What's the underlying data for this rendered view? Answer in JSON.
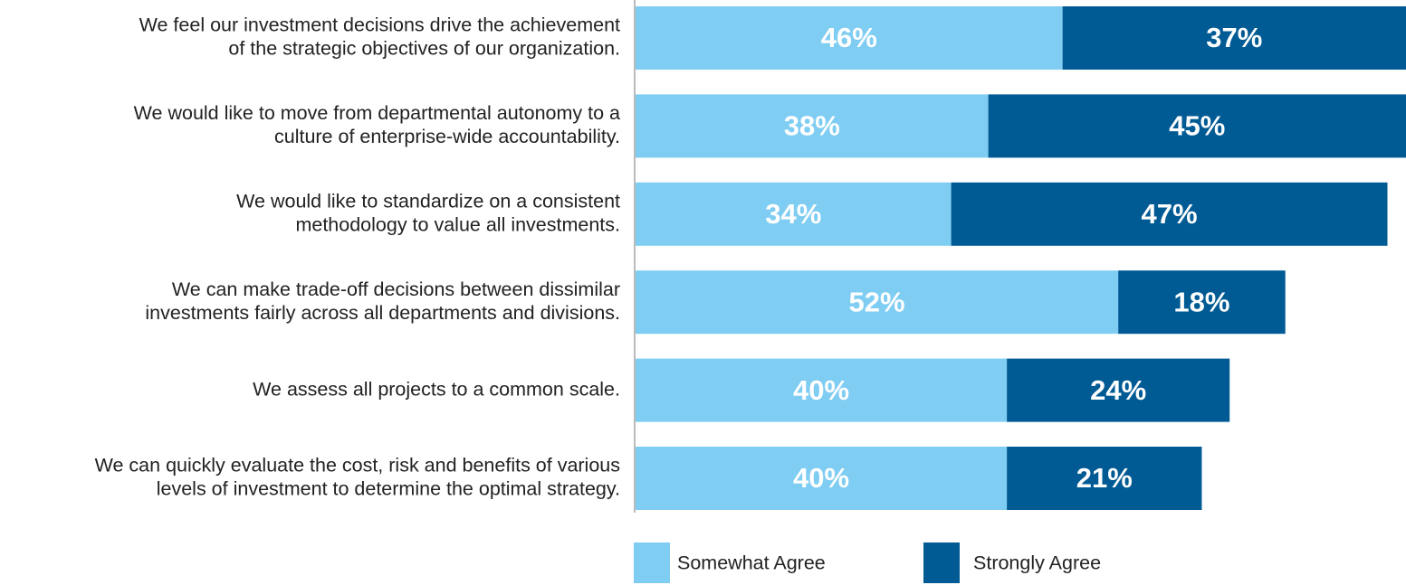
{
  "chart_data": {
    "type": "stacked-bar-horizontal",
    "categories": [
      [
        "We feel our investment decisions drive the achievement",
        "of the strategic objectives of our organization."
      ],
      [
        "We would like to move from departmental autonomy to a",
        "culture of enterprise-wide accountability."
      ],
      [
        "We would like to standardize on a consistent",
        "methodology to value all investments."
      ],
      [
        "We can make trade-off decisions between dissimilar",
        "investments fairly across all departments and divisions."
      ],
      [
        "We assess all projects to a common scale."
      ],
      [
        "We can quickly evaluate the cost, risk and benefits of various",
        "levels of investment to determine the optimal strategy."
      ]
    ],
    "series": [
      {
        "name": "Somewhat Agree",
        "color": "#7fcdf2",
        "values": [
          46,
          38,
          34,
          52,
          40,
          40
        ],
        "value_labels": [
          "46%",
          "38%",
          "34%",
          "52%",
          "40%",
          "40%"
        ]
      },
      {
        "name": "Strongly Agree",
        "color": "#005a94",
        "values": [
          37,
          45,
          47,
          18,
          24,
          21
        ],
        "value_labels": [
          "37%",
          "45%",
          "47%",
          "18%",
          "24%",
          "21%"
        ]
      }
    ],
    "legend": "bottom"
  }
}
